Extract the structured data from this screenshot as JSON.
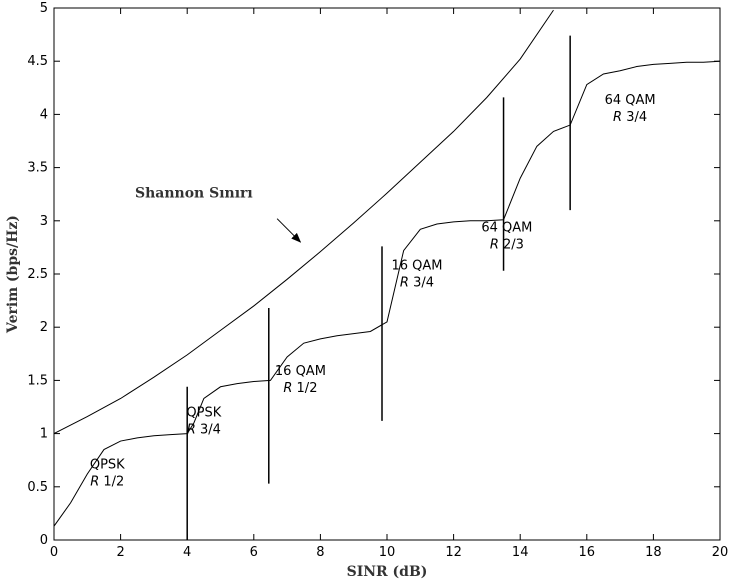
{
  "chart_data": {
    "type": "line",
    "title": "",
    "xlabel": "SINR (dB)",
    "ylabel": "Verim (bps/Hz)",
    "xlim": [
      0,
      20
    ],
    "ylim": [
      0,
      5
    ],
    "x_ticks": [
      0,
      2,
      4,
      6,
      8,
      10,
      12,
      14,
      16,
      18,
      20
    ],
    "y_ticks": [
      0,
      0.5,
      1,
      1.5,
      2,
      2.5,
      3,
      3.5,
      4,
      4.5,
      5
    ],
    "grid": false,
    "series": [
      {
        "name": "Shannon Sınırı",
        "color": "#000000",
        "x": [
          0,
          1,
          2,
          3,
          4,
          5,
          6,
          7,
          8,
          9,
          10,
          11,
          12,
          13,
          14,
          15
        ],
        "y": [
          1.0,
          1.16,
          1.33,
          1.53,
          1.74,
          1.97,
          2.2,
          2.45,
          2.71,
          2.98,
          3.26,
          3.55,
          3.84,
          4.16,
          4.52,
          4.98
        ]
      },
      {
        "name": "",
        "color": "#000000",
        "x": [
          0,
          0.5,
          1,
          1.5,
          2,
          2.5,
          3,
          3.5,
          4,
          4.2,
          4.5,
          5,
          5.5,
          6,
          6.5,
          7,
          7.5,
          8,
          8.5,
          9,
          9.5,
          10,
          10.5,
          11,
          11.5,
          12,
          12.5,
          13,
          13.5,
          14,
          14.5,
          15,
          15.5,
          16,
          16.5,
          17,
          17.5,
          18,
          18.5,
          19,
          19.5,
          20
        ],
        "y": [
          0.13,
          0.35,
          0.62,
          0.85,
          0.93,
          0.96,
          0.98,
          0.99,
          1.0,
          1.1,
          1.33,
          1.44,
          1.47,
          1.49,
          1.5,
          1.72,
          1.85,
          1.89,
          1.92,
          1.94,
          1.96,
          2.05,
          2.72,
          2.92,
          2.97,
          2.99,
          3.0,
          3.0,
          3.01,
          3.4,
          3.7,
          3.84,
          3.9,
          4.28,
          4.38,
          4.41,
          4.45,
          4.47,
          4.48,
          4.49,
          4.49,
          4.5
        ]
      }
    ],
    "dividers": [
      {
        "x": 4.0,
        "y0": 0.0,
        "y1": 1.44
      },
      {
        "x": 6.45,
        "y0": 0.53,
        "y1": 2.18
      },
      {
        "x": 9.85,
        "y0": 1.12,
        "y1": 2.76
      },
      {
        "x": 13.5,
        "y0": 2.53,
        "y1": 4.16
      },
      {
        "x": 15.5,
        "y0": 3.1,
        "y1": 4.74
      }
    ],
    "annotations": [
      {
        "line1": "QPSK",
        "line2": "R 1/2",
        "x": 1.6,
        "y": 0.67
      },
      {
        "line1": "QPSK",
        "line2": "R 3/4",
        "x": 4.5,
        "y": 1.16
      },
      {
        "line1": "16 QAM",
        "line2": "R 1/2",
        "x": 7.4,
        "y": 1.55
      },
      {
        "line1": "16 QAM",
        "line2": "R 3/4",
        "x": 10.9,
        "y": 2.54
      },
      {
        "line1": "64 QAM",
        "line2": "R 2/3",
        "x": 13.6,
        "y": 2.9
      },
      {
        "line1": "64 QAM",
        "line2": "R 3/4",
        "x": 17.3,
        "y": 4.1
      }
    ],
    "shannon_label": {
      "text": "Shannon Sınırı",
      "x": 4.2,
      "y": 3.22
    },
    "shannon_arrow": {
      "from_x": 6.7,
      "from_y": 3.02,
      "to_x": 7.4,
      "to_y": 2.8
    }
  }
}
